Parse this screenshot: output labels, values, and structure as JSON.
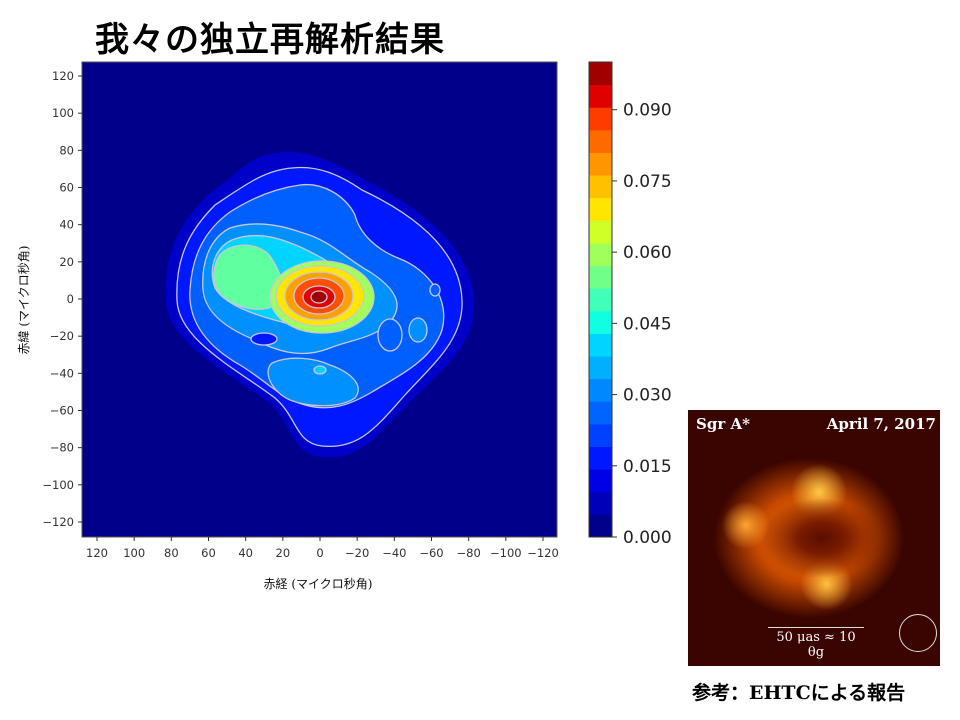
{
  "title": "我々の独立再解析結果",
  "chart_data": {
    "type": "heatmap",
    "subtype": "filled-contour",
    "xlabel": "赤経 (マイクロ秒角)",
    "ylabel": "赤緯 (マイクロ秒角)",
    "xlim": [
      128,
      -128
    ],
    "ylim": [
      -128,
      128
    ],
    "xticks": [
      120,
      100,
      80,
      60,
      40,
      20,
      0,
      -20,
      -40,
      -60,
      -80,
      -100,
      -120
    ],
    "yticks": [
      120,
      100,
      80,
      60,
      40,
      20,
      0,
      -20,
      -40,
      -60,
      -80,
      -100,
      -120
    ],
    "peak": {
      "x": 0,
      "y": 0
    },
    "colorbar": {
      "range": [
        0,
        0.1
      ],
      "ticks": [
        "0.000",
        "0.015",
        "0.030",
        "0.045",
        "0.060",
        "0.075",
        "0.090"
      ],
      "tick_values": [
        0,
        0.015,
        0.03,
        0.045,
        0.06,
        0.075,
        0.09
      ],
      "levels": 20,
      "colormap": "jet",
      "colors": [
        "#00008a",
        "#0000b8",
        "#0000e6",
        "#0018ff",
        "#0040ff",
        "#0064ff",
        "#0088ff",
        "#00b0ff",
        "#00d4ff",
        "#10ffe0",
        "#40ffb8",
        "#70ff88",
        "#a0ff58",
        "#d0ff28",
        "#ffe600",
        "#ffc000",
        "#ff9600",
        "#ff6a00",
        "#ff3c00",
        "#e00000",
        "#a00000"
      ]
    }
  },
  "reference": {
    "name": "Sgr A*",
    "date": "April 7, 2017",
    "scale": "50 μas ≈ 10 θg",
    "caption": "参考：EHTCによる報告"
  }
}
